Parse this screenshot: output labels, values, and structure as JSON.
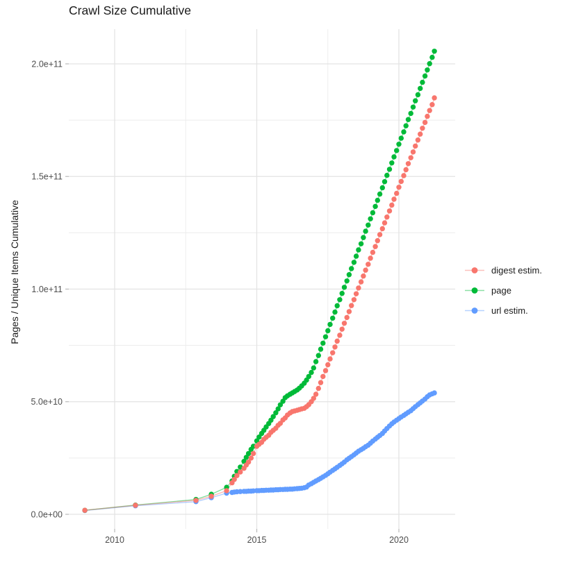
{
  "chart_data": {
    "type": "scatter",
    "title": "Crawl Size Cumulative",
    "xlabel": "",
    "ylabel": "Pages / Unique Items Cumulative",
    "legend_position": "right",
    "grid": true,
    "value_units": "points stored as [year, value_in_billions_1e9]",
    "x_axis": {
      "ticks": [
        {
          "value": 2010,
          "label": "2010"
        },
        {
          "value": 2015,
          "label": "2015"
        },
        {
          "value": 2020,
          "label": "2020"
        }
      ],
      "minor_ticks": [
        2012.5,
        2017.5
      ],
      "range": [
        2008.35,
        2022.0
      ]
    },
    "y_axis": {
      "ticks": [
        {
          "value_e9": 0,
          "label": "0.0e+00"
        },
        {
          "value_e9": 50,
          "label": "5.0e+10"
        },
        {
          "value_e9": 100,
          "label": "1.0e+11"
        },
        {
          "value_e9": 150,
          "label": "1.5e+11"
        },
        {
          "value_e9": 200,
          "label": "2.0e+11"
        }
      ],
      "minor_ticks_e9": [
        25,
        75,
        125,
        175
      ],
      "range_e9": [
        -6.5,
        215.5
      ]
    },
    "series": [
      {
        "name": "digest estim.",
        "color": "#F8766D",
        "points": [
          [
            2008.95,
            1.8
          ],
          [
            2010.73,
            4.0
          ],
          [
            2012.86,
            6.2
          ],
          [
            2013.4,
            8.0
          ],
          [
            2013.94,
            10.5
          ],
          [
            2014.13,
            14.0
          ],
          [
            2014.21,
            15.5
          ],
          [
            2014.3,
            17.2
          ],
          [
            2014.42,
            18.8
          ],
          [
            2014.55,
            20.4
          ],
          [
            2014.63,
            21.9
          ],
          [
            2014.71,
            23.2
          ],
          [
            2014.8,
            25.0
          ],
          [
            2014.88,
            27.0
          ],
          [
            2015.0,
            30.2
          ],
          [
            2015.08,
            31.1
          ],
          [
            2015.17,
            32.0
          ],
          [
            2015.25,
            33.3
          ],
          [
            2015.33,
            34.2
          ],
          [
            2015.42,
            35.1
          ],
          [
            2015.5,
            36.4
          ],
          [
            2015.58,
            37.3
          ],
          [
            2015.67,
            38.2
          ],
          [
            2015.75,
            39.5
          ],
          [
            2015.83,
            40.4
          ],
          [
            2015.92,
            41.9
          ],
          [
            2016.0,
            42.8
          ],
          [
            2016.08,
            44.1
          ],
          [
            2016.17,
            45.0
          ],
          [
            2016.25,
            45.6
          ],
          [
            2016.33,
            45.9
          ],
          [
            2016.42,
            46.2
          ],
          [
            2016.5,
            46.5
          ],
          [
            2016.58,
            46.8
          ],
          [
            2016.67,
            47.1
          ],
          [
            2016.75,
            47.8
          ],
          [
            2016.83,
            48.7
          ],
          [
            2016.92,
            50.0
          ],
          [
            2017.0,
            51.5
          ],
          [
            2017.08,
            53.3
          ],
          [
            2017.17,
            55.9
          ],
          [
            2017.25,
            58.5
          ],
          [
            2017.33,
            61.2
          ],
          [
            2017.42,
            63.8
          ],
          [
            2017.5,
            66.4
          ],
          [
            2017.58,
            69.0
          ],
          [
            2017.67,
            71.7
          ],
          [
            2017.75,
            74.3
          ],
          [
            2017.83,
            76.9
          ],
          [
            2017.92,
            79.5
          ],
          [
            2018.0,
            82.2
          ],
          [
            2018.08,
            84.8
          ],
          [
            2018.17,
            87.4
          ],
          [
            2018.25,
            90.0
          ],
          [
            2018.33,
            92.7
          ],
          [
            2018.42,
            95.3
          ],
          [
            2018.5,
            97.9
          ],
          [
            2018.58,
            100.5
          ],
          [
            2018.67,
            103.2
          ],
          [
            2018.75,
            105.8
          ],
          [
            2018.83,
            108.4
          ],
          [
            2018.92,
            111.0
          ],
          [
            2019.0,
            113.7
          ],
          [
            2019.08,
            116.3
          ],
          [
            2019.17,
            118.9
          ],
          [
            2019.25,
            121.5
          ],
          [
            2019.33,
            124.2
          ],
          [
            2019.42,
            126.8
          ],
          [
            2019.5,
            129.4
          ],
          [
            2019.58,
            132.0
          ],
          [
            2019.67,
            134.7
          ],
          [
            2019.75,
            137.3
          ],
          [
            2019.83,
            139.9
          ],
          [
            2019.92,
            142.5
          ],
          [
            2020.0,
            145.2
          ],
          [
            2020.08,
            147.8
          ],
          [
            2020.17,
            150.4
          ],
          [
            2020.25,
            153.0
          ],
          [
            2020.33,
            155.7
          ],
          [
            2020.42,
            158.3
          ],
          [
            2020.5,
            160.9
          ],
          [
            2020.58,
            163.5
          ],
          [
            2020.67,
            166.2
          ],
          [
            2020.75,
            168.8
          ],
          [
            2020.83,
            171.4
          ],
          [
            2020.92,
            174.0
          ],
          [
            2021.0,
            176.7
          ],
          [
            2021.08,
            179.3
          ],
          [
            2021.17,
            181.9
          ],
          [
            2021.25,
            184.9
          ]
        ]
      },
      {
        "name": "page",
        "color": "#00BA38",
        "points": [
          [
            2008.95,
            1.8
          ],
          [
            2010.73,
            4.1
          ],
          [
            2012.86,
            6.6
          ],
          [
            2013.4,
            8.9
          ],
          [
            2013.94,
            12.0
          ],
          [
            2014.13,
            14.8
          ],
          [
            2014.21,
            16.9
          ],
          [
            2014.3,
            19.0
          ],
          [
            2014.42,
            21.0
          ],
          [
            2014.55,
            23.5
          ],
          [
            2014.63,
            25.3
          ],
          [
            2014.71,
            27.0
          ],
          [
            2014.8,
            28.8
          ],
          [
            2014.88,
            30.2
          ],
          [
            2015.0,
            32.6
          ],
          [
            2015.08,
            34.3
          ],
          [
            2015.17,
            35.9
          ],
          [
            2015.25,
            37.3
          ],
          [
            2015.33,
            38.8
          ],
          [
            2015.42,
            40.3
          ],
          [
            2015.5,
            41.8
          ],
          [
            2015.58,
            43.4
          ],
          [
            2015.67,
            45.1
          ],
          [
            2015.75,
            46.8
          ],
          [
            2015.83,
            48.6
          ],
          [
            2015.92,
            50.2
          ],
          [
            2016.0,
            51.8
          ],
          [
            2016.08,
            52.6
          ],
          [
            2016.17,
            53.3
          ],
          [
            2016.25,
            53.9
          ],
          [
            2016.33,
            54.5
          ],
          [
            2016.42,
            55.2
          ],
          [
            2016.5,
            56.0
          ],
          [
            2016.58,
            57.0
          ],
          [
            2016.67,
            58.2
          ],
          [
            2016.75,
            59.6
          ],
          [
            2016.83,
            61.2
          ],
          [
            2016.92,
            63.0
          ],
          [
            2017.0,
            65.0
          ],
          [
            2017.08,
            67.8
          ],
          [
            2017.17,
            70.5
          ],
          [
            2017.25,
            73.3
          ],
          [
            2017.33,
            76.0
          ],
          [
            2017.42,
            78.8
          ],
          [
            2017.5,
            81.5
          ],
          [
            2017.58,
            84.3
          ],
          [
            2017.67,
            87.1
          ],
          [
            2017.75,
            89.8
          ],
          [
            2017.83,
            92.6
          ],
          [
            2017.92,
            95.3
          ],
          [
            2018.0,
            98.1
          ],
          [
            2018.08,
            100.8
          ],
          [
            2018.17,
            103.6
          ],
          [
            2018.25,
            106.4
          ],
          [
            2018.33,
            109.1
          ],
          [
            2018.42,
            111.9
          ],
          [
            2018.5,
            114.6
          ],
          [
            2018.58,
            117.4
          ],
          [
            2018.67,
            120.1
          ],
          [
            2018.75,
            122.9
          ],
          [
            2018.83,
            125.7
          ],
          [
            2018.92,
            128.4
          ],
          [
            2019.0,
            131.2
          ],
          [
            2019.08,
            133.9
          ],
          [
            2019.17,
            136.7
          ],
          [
            2019.25,
            139.4
          ],
          [
            2019.33,
            142.2
          ],
          [
            2019.42,
            145.0
          ],
          [
            2019.5,
            147.7
          ],
          [
            2019.58,
            150.5
          ],
          [
            2019.67,
            153.2
          ],
          [
            2019.75,
            156.0
          ],
          [
            2019.83,
            158.7
          ],
          [
            2019.92,
            161.5
          ],
          [
            2020.0,
            164.3
          ],
          [
            2020.08,
            167.0
          ],
          [
            2020.17,
            169.8
          ],
          [
            2020.25,
            172.5
          ],
          [
            2020.33,
            175.3
          ],
          [
            2020.42,
            178.0
          ],
          [
            2020.5,
            180.8
          ],
          [
            2020.58,
            183.6
          ],
          [
            2020.67,
            186.3
          ],
          [
            2020.75,
            189.1
          ],
          [
            2020.83,
            191.8
          ],
          [
            2020.92,
            194.6
          ],
          [
            2021.0,
            197.3
          ],
          [
            2021.08,
            200.1
          ],
          [
            2021.17,
            202.9
          ],
          [
            2021.25,
            205.6
          ]
        ]
      },
      {
        "name": "url estim.",
        "color": "#619CFF",
        "points": [
          [
            2008.95,
            1.7
          ],
          [
            2010.73,
            3.8
          ],
          [
            2012.86,
            5.6
          ],
          [
            2013.4,
            7.4
          ],
          [
            2013.94,
            9.4
          ],
          [
            2014.13,
            9.7
          ],
          [
            2014.21,
            9.9
          ],
          [
            2014.3,
            10.0
          ],
          [
            2014.42,
            10.1
          ],
          [
            2014.55,
            10.2
          ],
          [
            2014.63,
            10.2
          ],
          [
            2014.71,
            10.3
          ],
          [
            2014.8,
            10.3
          ],
          [
            2014.88,
            10.4
          ],
          [
            2015.0,
            10.5
          ],
          [
            2015.08,
            10.5
          ],
          [
            2015.17,
            10.6
          ],
          [
            2015.25,
            10.6
          ],
          [
            2015.33,
            10.7
          ],
          [
            2015.42,
            10.7
          ],
          [
            2015.5,
            10.8
          ],
          [
            2015.58,
            10.8
          ],
          [
            2015.67,
            10.9
          ],
          [
            2015.75,
            10.9
          ],
          [
            2015.83,
            11.0
          ],
          [
            2015.92,
            11.0
          ],
          [
            2016.0,
            11.1
          ],
          [
            2016.08,
            11.1
          ],
          [
            2016.17,
            11.2
          ],
          [
            2016.25,
            11.2
          ],
          [
            2016.33,
            11.3
          ],
          [
            2016.42,
            11.4
          ],
          [
            2016.5,
            11.5
          ],
          [
            2016.58,
            11.6
          ],
          [
            2016.67,
            11.8
          ],
          [
            2016.75,
            12.1
          ],
          [
            2016.83,
            13.0
          ],
          [
            2016.92,
            13.6
          ],
          [
            2017.0,
            14.2
          ],
          [
            2017.08,
            14.8
          ],
          [
            2017.17,
            15.4
          ],
          [
            2017.25,
            16.0
          ],
          [
            2017.33,
            16.6
          ],
          [
            2017.42,
            17.3
          ],
          [
            2017.5,
            18.0
          ],
          [
            2017.58,
            18.7
          ],
          [
            2017.67,
            19.5
          ],
          [
            2017.75,
            20.2
          ],
          [
            2017.83,
            20.9
          ],
          [
            2017.92,
            21.7
          ],
          [
            2018.0,
            22.4
          ],
          [
            2018.08,
            23.2
          ],
          [
            2018.17,
            24.2
          ],
          [
            2018.25,
            24.9
          ],
          [
            2018.33,
            25.6
          ],
          [
            2018.42,
            26.4
          ],
          [
            2018.5,
            27.2
          ],
          [
            2018.58,
            28.0
          ],
          [
            2018.67,
            28.7
          ],
          [
            2018.75,
            29.3
          ],
          [
            2018.83,
            30.0
          ],
          [
            2018.92,
            30.7
          ],
          [
            2019.0,
            31.6
          ],
          [
            2019.08,
            32.5
          ],
          [
            2019.17,
            33.4
          ],
          [
            2019.25,
            34.2
          ],
          [
            2019.33,
            35.0
          ],
          [
            2019.42,
            35.9
          ],
          [
            2019.5,
            37.0
          ],
          [
            2019.58,
            38.1
          ],
          [
            2019.67,
            39.2
          ],
          [
            2019.75,
            40.2
          ],
          [
            2019.83,
            41.0
          ],
          [
            2019.92,
            41.8
          ],
          [
            2020.0,
            42.5
          ],
          [
            2020.08,
            43.2
          ],
          [
            2020.17,
            43.9
          ],
          [
            2020.25,
            44.6
          ],
          [
            2020.33,
            45.3
          ],
          [
            2020.42,
            46.0
          ],
          [
            2020.5,
            46.9
          ],
          [
            2020.58,
            47.8
          ],
          [
            2020.67,
            48.7
          ],
          [
            2020.75,
            49.5
          ],
          [
            2020.83,
            50.3
          ],
          [
            2020.92,
            51.2
          ],
          [
            2021.0,
            52.2
          ],
          [
            2021.08,
            53.0
          ],
          [
            2021.17,
            53.5
          ],
          [
            2021.25,
            53.9
          ]
        ]
      }
    ]
  }
}
